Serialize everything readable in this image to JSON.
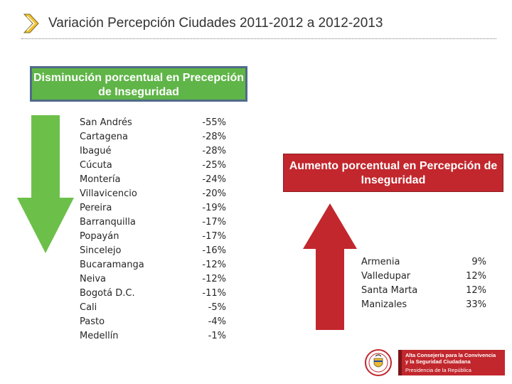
{
  "header": {
    "title": "Variación  Percepción Ciudades 2011-2012 a 2012-2013"
  },
  "decrease_box": {
    "label": "Disminución porcentual en Precepción de Inseguridad"
  },
  "increase_box": {
    "label": "Aumento porcentual en Percepción de Inseguridad"
  },
  "decrease_cities": [
    {
      "city": "San Andrés",
      "change": "-55%"
    },
    {
      "city": "Cartagena",
      "change": "-28%"
    },
    {
      "city": "Ibagué",
      "change": "-28%"
    },
    {
      "city": "Cúcuta",
      "change": "-25%"
    },
    {
      "city": "Montería",
      "change": "-24%"
    },
    {
      "city": "Villavicencio",
      "change": "-20%"
    },
    {
      "city": "Pereira",
      "change": "-19%"
    },
    {
      "city": "Barranquilla",
      "change": "-17%"
    },
    {
      "city": "Popayán",
      "change": "-17%"
    },
    {
      "city": "Sincelejo",
      "change": "-16%"
    },
    {
      "city": "Bucaramanga",
      "change": "-12%"
    },
    {
      "city": "Neiva",
      "change": "-12%"
    },
    {
      "city": "Bogotá D.C.",
      "change": "-11%"
    },
    {
      "city": "Cali",
      "change": "-5%"
    },
    {
      "city": "Pasto",
      "change": "-4%"
    },
    {
      "city": "Medellín",
      "change": "-1%"
    }
  ],
  "increase_cities": [
    {
      "city": "Armenia",
      "change": "9%"
    },
    {
      "city": "Valledupar",
      "change": "12%"
    },
    {
      "city": "Santa Marta",
      "change": "12%"
    },
    {
      "city": "Manizales",
      "change": "33%"
    }
  ],
  "logo": {
    "line1": "Alta Consejería para la Convivencia",
    "line2": "y la Seguridad Ciudadana",
    "line3": "Presidencia de la República"
  },
  "icons": {
    "title_bullet": "double-chevron-icon",
    "decrease_arrow": "arrow-down-icon",
    "increase_arrow": "arrow-up-icon",
    "seal": "coat-of-arms-icon"
  },
  "colors": {
    "decrease": "#6cc04a",
    "increase": "#c2272d",
    "box_green": "#5fb547",
    "box_border": "#4f6b8a",
    "title_bullet": "#f2c230"
  }
}
